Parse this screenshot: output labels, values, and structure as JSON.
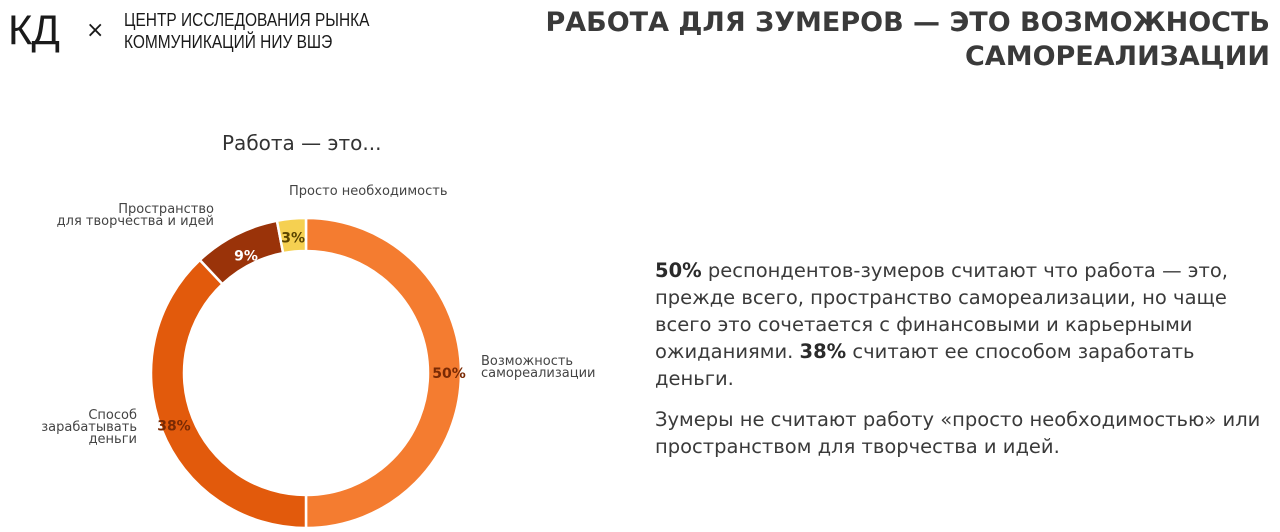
{
  "header": {
    "logo": "КД",
    "times": "×",
    "org_line1": "ЦЕНТР ИССЛЕДОВАНИЯ РЫНКА",
    "org_line2": "КОММУНИКАЦИЙ НИУ ВШЭ"
  },
  "title": {
    "line1": "РАБОТА ДЛЯ ЗУМЕРОВ — ЭТО ВОЗМОЖНОСТЬ",
    "line2": "САМОРЕАЛИЗАЦИИ"
  },
  "chart_data": {
    "type": "pie",
    "title": "Работа — это...",
    "slices": [
      {
        "label_lines": [
          "Возможность",
          "самореализации"
        ],
        "value": 50,
        "display": "50%",
        "color": "#F47C30"
      },
      {
        "label_lines": [
          "Способ",
          "зарабатывать",
          "деньги"
        ],
        "value": 38,
        "display": "38%",
        "color": "#E25A0C"
      },
      {
        "label_lines": [
          "Пространство",
          "для творчества и идей"
        ],
        "value": 9,
        "display": "9%",
        "color": "#9A3309"
      },
      {
        "label_lines": [
          "Просто необходимость"
        ],
        "value": 3,
        "display": "3%",
        "color": "#F5D051"
      }
    ]
  },
  "text": {
    "p1_bold1": "50%",
    "p1_text1": " респондентов-зумеров считают что работа — это, прежде всего, пространство самореализации, но чаще всего это сочетается с финансовыми и карьерными ожиданиями. ",
    "p1_bold2": "38%",
    "p1_text2": " считают ее способом заработать деньги.",
    "p2": "Зумеры не считают работу «просто необходимостью» или пространством для творчества и идей."
  }
}
